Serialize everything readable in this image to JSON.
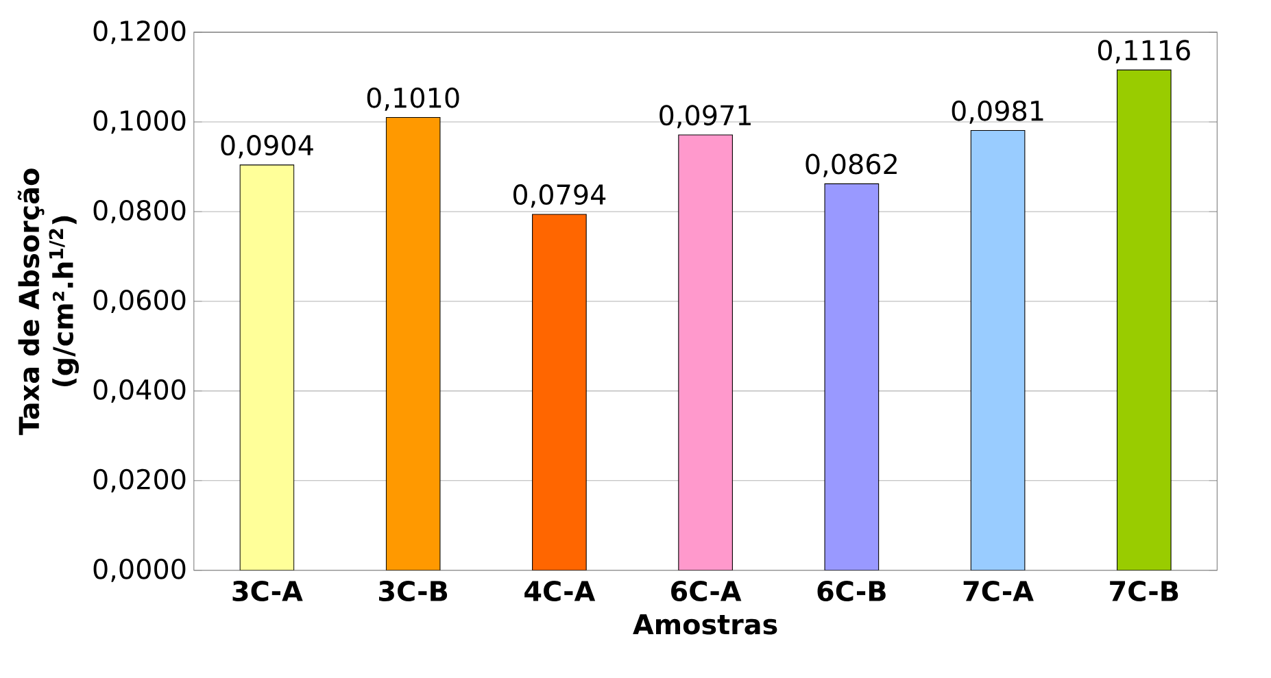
{
  "chart_data": {
    "type": "bar",
    "xlabel": "Amostras",
    "ylabel": "Taxa de Absorção (g/cm².h$^{1/2}$)",
    "categories": [
      "3C-A",
      "3C-B",
      "4C-A",
      "6C-A",
      "6C-B",
      "7C-A",
      "7C-B"
    ],
    "values": [
      0.0904,
      0.101,
      0.0794,
      0.0971,
      0.0862,
      0.0981,
      0.1116
    ],
    "value_labels": [
      "0,0904",
      "0,1010",
      "0,0794",
      "0,0971",
      "0,0862",
      "0,0981",
      "0,1116"
    ],
    "colors": [
      "#ffff99",
      "#ff9900",
      "#ff6600",
      "#ff99cc",
      "#9999ff",
      "#99ccff",
      "#99cc00"
    ],
    "ylim": [
      0,
      0.12
    ],
    "yticks": [
      {
        "value": 0,
        "label": "0,0000"
      },
      {
        "value": 0.02,
        "label": "0,0200"
      },
      {
        "value": 0.04,
        "label": "0,0400"
      },
      {
        "value": 0.06,
        "label": "0,0600"
      },
      {
        "value": 0.08,
        "label": "0,0800"
      },
      {
        "value": 0.1,
        "label": "0,1000"
      },
      {
        "value": 0.12,
        "label": "0,1200"
      }
    ],
    "grid": "y"
  }
}
